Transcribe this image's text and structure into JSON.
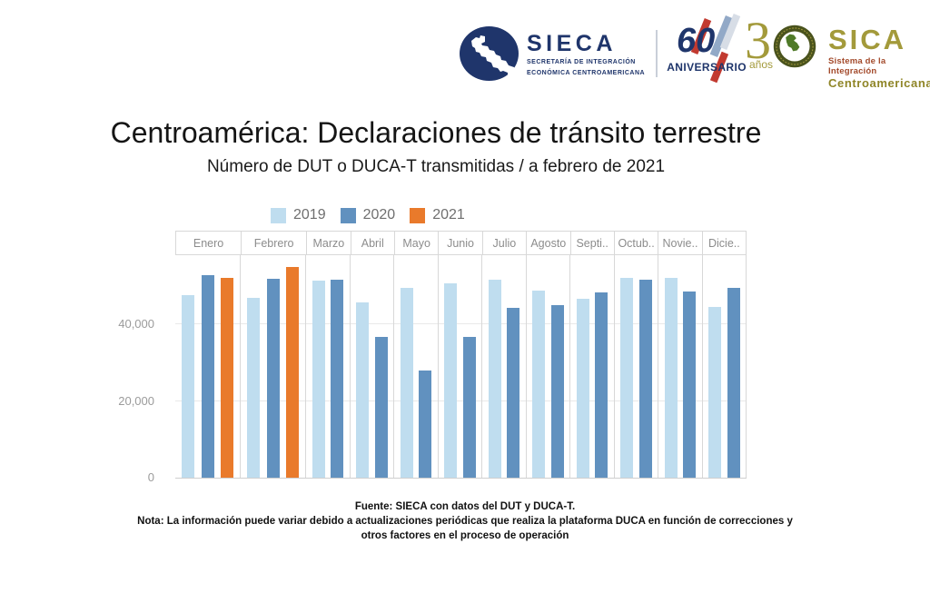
{
  "header": {
    "sieca": {
      "name": "SIECA",
      "line1": "SECRETARÍA DE INTEGRACIÓN",
      "line2": "ECONÓMICA CENTROAMERICANA",
      "anniversary_number": "60",
      "anniversary_label": "ANIVERSARIO",
      "navy_color": "#1F356B"
    },
    "sica": {
      "number": "3",
      "anios": "años",
      "name": "SICA",
      "line1": "Sistema de la Integración",
      "line2": "Centroamericana",
      "gold_color": "#A39A3B",
      "green_color": "#4A531D"
    }
  },
  "title": "Centroamérica: Declaraciones de tránsito terrestre",
  "subtitle": "Número de DUT o DUCA-T transmitidas / a febrero de 2021",
  "chart_data": {
    "type": "bar",
    "categories": [
      "Enero",
      "Febrero",
      "Marzo",
      "Abril",
      "Mayo",
      "Junio",
      "Julio",
      "Agosto",
      "Septiembre",
      "Octubre",
      "Noviembre",
      "Diciembre"
    ],
    "category_labels": [
      "Enero",
      "Febrero",
      "Marzo",
      "Abril",
      "Mayo",
      "Junio",
      "Julio",
      "Agosto",
      "Septi..",
      "Octub..",
      "Novie..",
      "Dicie.."
    ],
    "series": [
      {
        "name": "2019",
        "color": "#BFDDEF",
        "values": [
          47500,
          46800,
          51400,
          45600,
          49400,
          50600,
          51700,
          48800,
          46600,
          52200,
          52000,
          44600
        ]
      },
      {
        "name": "2020",
        "color": "#6191BF",
        "values": [
          52800,
          51800,
          51600,
          36600,
          27900,
          36700,
          44200,
          44900,
          48200,
          51600,
          48500,
          49400
        ]
      },
      {
        "name": "2021",
        "color": "#E97A2B",
        "values": [
          52000,
          55000,
          null,
          null,
          null,
          null,
          null,
          null,
          null,
          null,
          null,
          null
        ]
      }
    ],
    "title": "",
    "xlabel": "",
    "ylabel": "",
    "yticks": [
      0,
      20000,
      40000
    ],
    "ytick_labels": [
      "0",
      "20,000",
      "40,000"
    ],
    "ymax": 58000,
    "grid": true,
    "legend_position": "top-left"
  },
  "footer": {
    "fuente": "Fuente: SIECA con datos del DUT y DUCA-T.",
    "nota_line1": "Nota: La información puede variar debido a actualizaciones periódicas que realiza la plataforma DUCA en función de correcciones y",
    "nota_line2": "otros factores en el proceso de operación"
  }
}
